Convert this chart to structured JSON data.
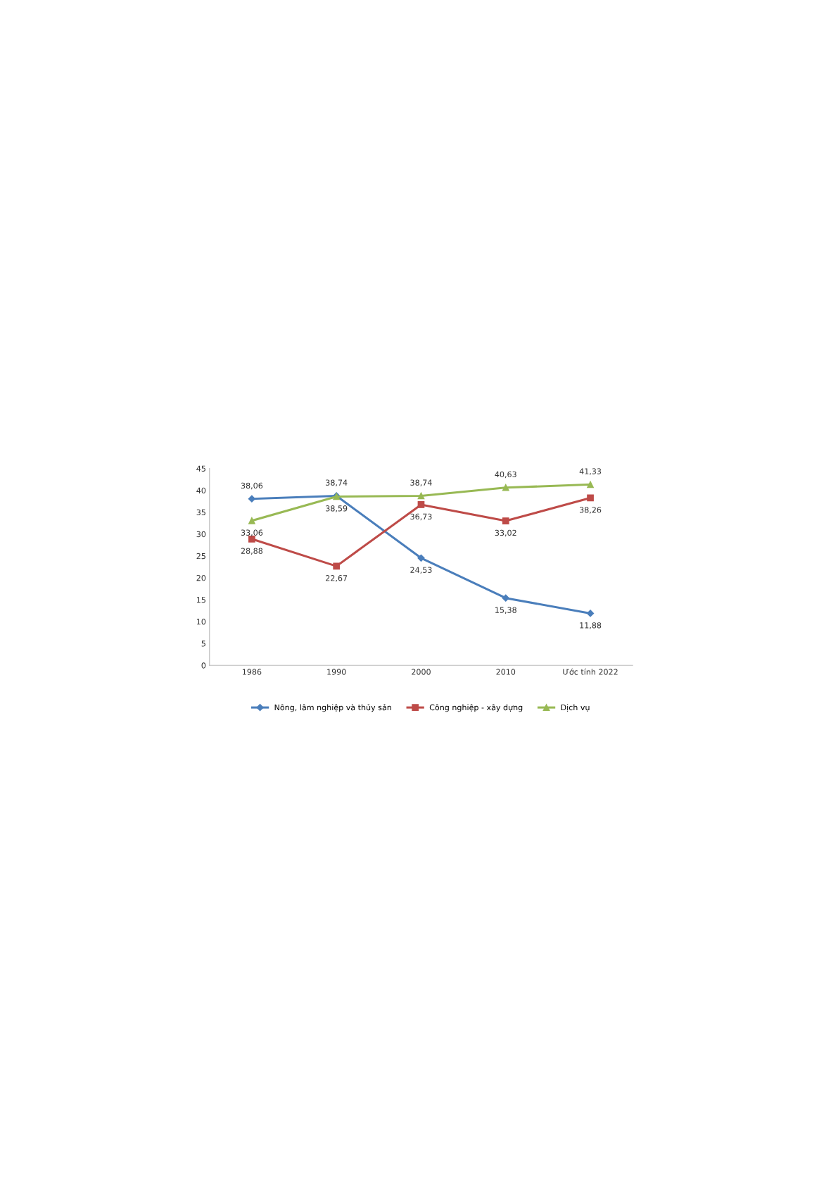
{
  "chart_data": {
    "type": "line",
    "categories": [
      "1986",
      "1990",
      "2000",
      "2010",
      "Ước tính 2022"
    ],
    "ylim": [
      0,
      45
    ],
    "yticks": [
      0,
      5,
      10,
      15,
      20,
      25,
      30,
      35,
      40,
      45
    ],
    "grid": false,
    "legend": "bottom",
    "series": [
      {
        "name": "Nông, lâm nghiệp và thủy sản",
        "color": "#4a7ebb",
        "marker": "diamond",
        "values": [
          38.06,
          38.74,
          24.53,
          15.38,
          11.88
        ],
        "value_labels": [
          "38,06",
          "38,74",
          "24,53",
          "15,38",
          "11,88"
        ]
      },
      {
        "name": "Công nghiệp - xây dựng",
        "color": "#be4b48",
        "marker": "square",
        "values": [
          28.88,
          22.67,
          36.73,
          33.02,
          38.26
        ],
        "value_labels": [
          "28,88",
          "22,67",
          "36,73",
          "33,02",
          "38,26"
        ]
      },
      {
        "name": "Dịch vụ",
        "color": "#98b954",
        "marker": "triangle",
        "values": [
          33.06,
          38.59,
          38.74,
          40.63,
          41.33
        ],
        "value_labels": [
          "33,06",
          "38,59",
          "38,74",
          "40,63",
          "41,33"
        ]
      }
    ]
  }
}
